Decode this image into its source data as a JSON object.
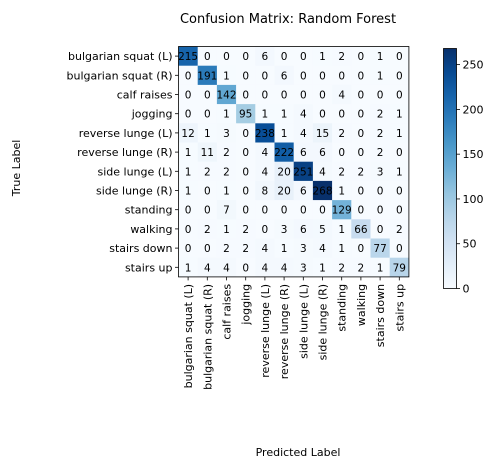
{
  "chart_data": {
    "type": "heatmap",
    "title": "Confusion Matrix: Random Forest",
    "xlabel": "Predicted Label",
    "ylabel": "True Label",
    "labels": [
      "bulgarian squat (L)",
      "bulgarian squat (R)",
      "calf raises",
      "jogging",
      "reverse lunge (L)",
      "reverse lunge (R)",
      "side lunge (L)",
      "side lunge (R)",
      "standing",
      "walking",
      "stairs down",
      "stairs up"
    ],
    "matrix": [
      [
        215,
        0,
        0,
        0,
        6,
        0,
        0,
        1,
        2,
        0,
        1,
        0
      ],
      [
        0,
        191,
        1,
        0,
        0,
        6,
        0,
        0,
        0,
        0,
        1,
        0
      ],
      [
        0,
        0,
        142,
        0,
        0,
        0,
        0,
        0,
        4,
        0,
        0,
        0
      ],
      [
        0,
        0,
        1,
        95,
        1,
        1,
        4,
        0,
        0,
        0,
        2,
        1
      ],
      [
        12,
        1,
        3,
        0,
        238,
        1,
        4,
        15,
        2,
        0,
        2,
        1
      ],
      [
        1,
        11,
        2,
        0,
        4,
        222,
        6,
        6,
        0,
        0,
        2,
        0
      ],
      [
        1,
        2,
        2,
        0,
        4,
        20,
        251,
        4,
        2,
        2,
        3,
        1
      ],
      [
        1,
        0,
        1,
        0,
        8,
        20,
        6,
        268,
        1,
        0,
        0,
        0
      ],
      [
        0,
        0,
        7,
        0,
        0,
        0,
        0,
        0,
        129,
        0,
        0,
        0
      ],
      [
        0,
        2,
        1,
        2,
        0,
        3,
        6,
        5,
        1,
        66,
        0,
        2
      ],
      [
        0,
        0,
        2,
        2,
        4,
        1,
        3,
        4,
        1,
        0,
        77,
        0
      ],
      [
        1,
        4,
        4,
        0,
        4,
        4,
        3,
        1,
        2,
        2,
        1,
        79
      ]
    ],
    "colormap": "Blues",
    "vmin": 0,
    "vmax": 268,
    "colorbar_ticks": [
      0,
      50,
      100,
      150,
      200,
      250
    ],
    "colorbar_ticks_text": [
      "0",
      "50",
      "100",
      "150",
      "200",
      "250"
    ],
    "text_threshold": 134
  }
}
